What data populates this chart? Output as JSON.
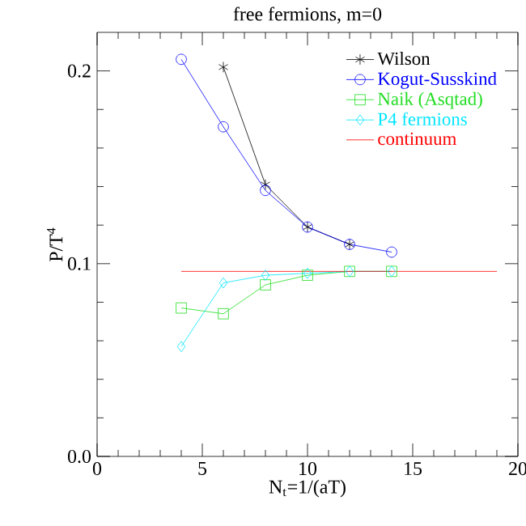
{
  "chart_data": {
    "type": "line",
    "title": "free fermions, m=0",
    "xlabel": "N$_{t}$=1/(aT)",
    "ylabel": "P/T$^{4}$",
    "xlim": [
      0,
      20
    ],
    "ylim": [
      0,
      0.22
    ],
    "xticks": [
      0,
      5,
      10,
      15,
      20
    ],
    "yticks": [
      {
        "value": 0,
        "label": "0.0"
      },
      {
        "value": 0.1,
        "label": "0.1"
      },
      {
        "value": 0.2,
        "label": "0.2"
      }
    ],
    "legend": "top right",
    "grid": false,
    "series": [
      {
        "name": "Wilson",
        "color": "#000000",
        "marker": "cross",
        "x": [
          6,
          8,
          10,
          12
        ],
        "values": [
          0.202,
          0.141,
          0.119,
          0.11
        ]
      },
      {
        "name": "Kogut-Susskind",
        "color": "#0000ff",
        "marker": "circle",
        "x": [
          4,
          6,
          8,
          10,
          12,
          14
        ],
        "values": [
          0.206,
          0.171,
          0.138,
          0.119,
          0.11,
          0.106
        ]
      },
      {
        "name": "Naik (Asqtad)",
        "color": "#22dd22",
        "marker": "square",
        "x": [
          4,
          6,
          8,
          10,
          12,
          14
        ],
        "values": [
          0.077,
          0.074,
          0.089,
          0.094,
          0.096,
          0.096
        ]
      },
      {
        "name": "P4 fermions",
        "color": "#00e5ff",
        "marker": "diamond",
        "x": [
          4,
          6,
          8,
          10,
          12,
          14
        ],
        "values": [
          0.057,
          0.09,
          0.094,
          0.095,
          0.096,
          0.096
        ]
      },
      {
        "name": "continuum",
        "color": "#ff0000",
        "marker": "none",
        "x": [
          4,
          19
        ],
        "values": [
          0.096,
          0.096
        ]
      }
    ]
  }
}
